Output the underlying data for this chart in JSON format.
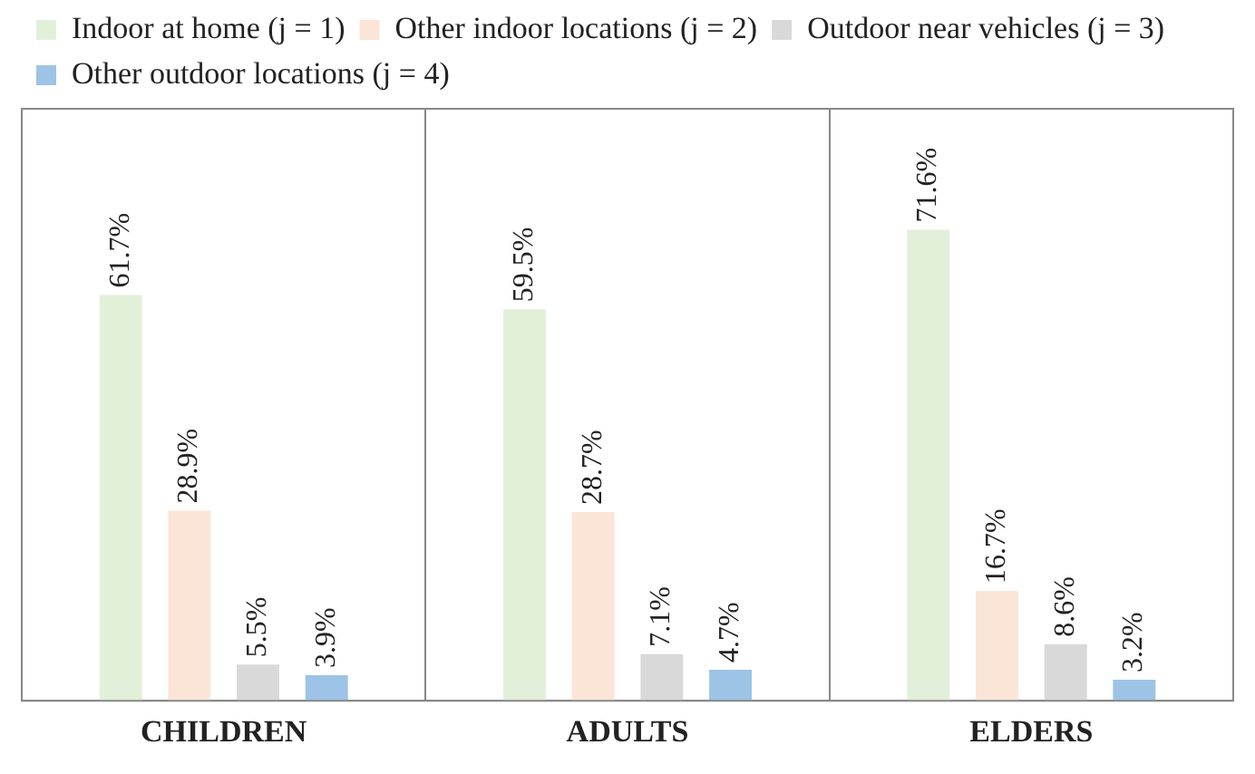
{
  "chart_data": {
    "type": "bar",
    "categories": [
      "CHILDREN",
      "ADULTS",
      "ELDERS"
    ],
    "series": [
      {
        "name": "Indoor at home (j = 1)",
        "color": "#e2f0d9",
        "values": [
          61.7,
          59.5,
          71.6
        ],
        "value_labels": [
          "61.7%",
          "59.5%",
          "71.6%"
        ]
      },
      {
        "name": "Other indoor locations (j = 2)",
        "color": "#fbe5d6",
        "values": [
          28.9,
          28.7,
          16.7
        ],
        "value_labels": [
          "28.9%",
          "28.7%",
          "16.7%"
        ]
      },
      {
        "name": "Outdoor near vehicles (j = 3)",
        "color": "#d9d9d9",
        "values": [
          5.5,
          7.1,
          8.6
        ],
        "value_labels": [
          "5.5%",
          "7.1%",
          "8.6%"
        ]
      },
      {
        "name": "Other outdoor locations (j = 4)",
        "color": "#9dc3e6",
        "values": [
          3.9,
          4.7,
          3.2
        ],
        "value_labels": [
          "3.9%",
          "4.7%",
          "3.2%"
        ]
      }
    ],
    "ylim": [
      0,
      90
    ],
    "tick_labels": "x",
    "grid": "x",
    "legend": "top"
  }
}
